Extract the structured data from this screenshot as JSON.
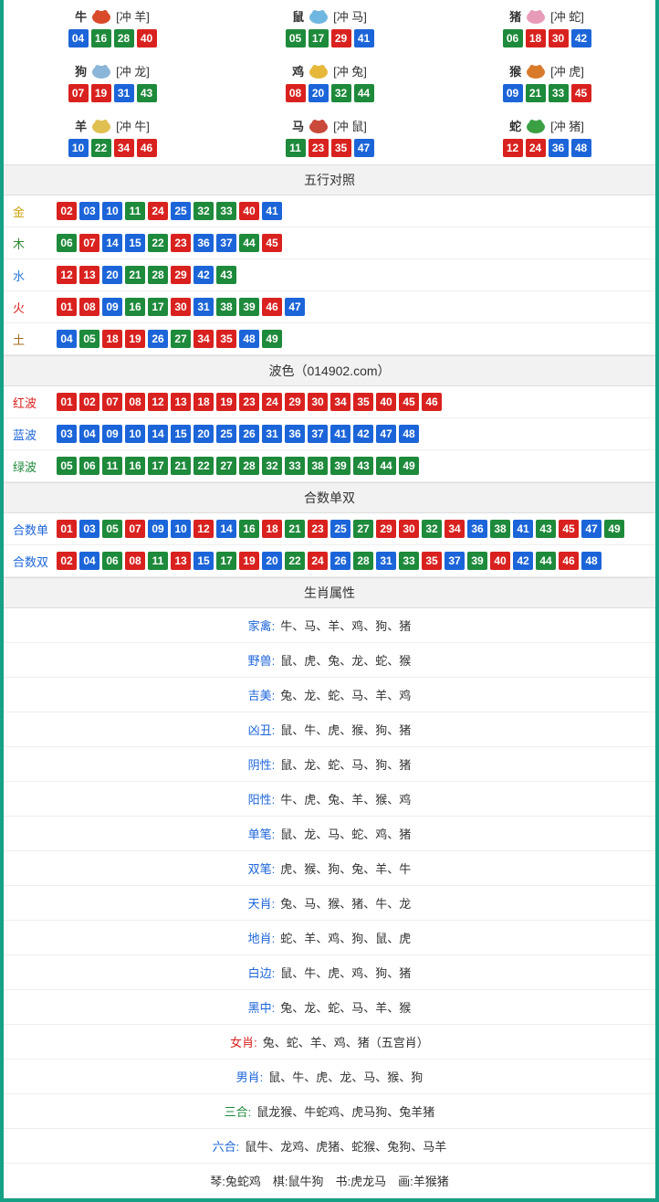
{
  "colors": {
    "border": "#16a085",
    "red": "#d9221f",
    "blue": "#1c65d9",
    "green": "#1e8a3b",
    "header_bg": "#f2f2f2",
    "row_border": "#eeeeee"
  },
  "ball_style": {
    "width": 22,
    "height": 20,
    "font_size": 12,
    "border_radius": 2
  },
  "zodiac": [
    {
      "name": "牛",
      "clash": "[冲 羊]",
      "icon_color": "#d94a2a",
      "balls": [
        {
          "n": "04",
          "c": "b"
        },
        {
          "n": "16",
          "c": "g"
        },
        {
          "n": "28",
          "c": "g"
        },
        {
          "n": "40",
          "c": "r"
        }
      ]
    },
    {
      "name": "鼠",
      "clash": "[冲 马]",
      "icon_color": "#6fb7e0",
      "balls": [
        {
          "n": "05",
          "c": "g"
        },
        {
          "n": "17",
          "c": "g"
        },
        {
          "n": "29",
          "c": "r"
        },
        {
          "n": "41",
          "c": "b"
        }
      ]
    },
    {
      "name": "猪",
      "clash": "[冲 蛇]",
      "icon_color": "#e89bb8",
      "balls": [
        {
          "n": "06",
          "c": "g"
        },
        {
          "n": "18",
          "c": "r"
        },
        {
          "n": "30",
          "c": "r"
        },
        {
          "n": "42",
          "c": "b"
        }
      ]
    },
    {
      "name": "狗",
      "clash": "[冲 龙]",
      "icon_color": "#8cb6d9",
      "balls": [
        {
          "n": "07",
          "c": "r"
        },
        {
          "n": "19",
          "c": "r"
        },
        {
          "n": "31",
          "c": "b"
        },
        {
          "n": "43",
          "c": "g"
        }
      ]
    },
    {
      "name": "鸡",
      "clash": "[冲 兔]",
      "icon_color": "#e6b83a",
      "balls": [
        {
          "n": "08",
          "c": "r"
        },
        {
          "n": "20",
          "c": "b"
        },
        {
          "n": "32",
          "c": "g"
        },
        {
          "n": "44",
          "c": "g"
        }
      ]
    },
    {
      "name": "猴",
      "clash": "[冲 虎]",
      "icon_color": "#d97a2a",
      "balls": [
        {
          "n": "09",
          "c": "b"
        },
        {
          "n": "21",
          "c": "g"
        },
        {
          "n": "33",
          "c": "g"
        },
        {
          "n": "45",
          "c": "r"
        }
      ]
    },
    {
      "name": "羊",
      "clash": "[冲 牛]",
      "icon_color": "#e0c050",
      "balls": [
        {
          "n": "10",
          "c": "b"
        },
        {
          "n": "22",
          "c": "g"
        },
        {
          "n": "34",
          "c": "r"
        },
        {
          "n": "46",
          "c": "r"
        }
      ]
    },
    {
      "name": "马",
      "clash": "[冲 鼠]",
      "icon_color": "#c94a3a",
      "balls": [
        {
          "n": "11",
          "c": "g"
        },
        {
          "n": "23",
          "c": "r"
        },
        {
          "n": "35",
          "c": "r"
        },
        {
          "n": "47",
          "c": "b"
        }
      ]
    },
    {
      "name": "蛇",
      "clash": "[冲 猪]",
      "icon_color": "#3aa043",
      "balls": [
        {
          "n": "12",
          "c": "r"
        },
        {
          "n": "24",
          "c": "r"
        },
        {
          "n": "36",
          "c": "b"
        },
        {
          "n": "48",
          "c": "b"
        }
      ]
    }
  ],
  "sections": {
    "wuxing_title": "五行对照",
    "wuxing": [
      {
        "label": "金",
        "label_class": "lbl-gold",
        "balls": [
          {
            "n": "02",
            "c": "r"
          },
          {
            "n": "03",
            "c": "b"
          },
          {
            "n": "10",
            "c": "b"
          },
          {
            "n": "11",
            "c": "g"
          },
          {
            "n": "24",
            "c": "r"
          },
          {
            "n": "25",
            "c": "b"
          },
          {
            "n": "32",
            "c": "g"
          },
          {
            "n": "33",
            "c": "g"
          },
          {
            "n": "40",
            "c": "r"
          },
          {
            "n": "41",
            "c": "b"
          }
        ]
      },
      {
        "label": "木",
        "label_class": "lbl-wood",
        "balls": [
          {
            "n": "06",
            "c": "g"
          },
          {
            "n": "07",
            "c": "r"
          },
          {
            "n": "14",
            "c": "b"
          },
          {
            "n": "15",
            "c": "b"
          },
          {
            "n": "22",
            "c": "g"
          },
          {
            "n": "23",
            "c": "r"
          },
          {
            "n": "36",
            "c": "b"
          },
          {
            "n": "37",
            "c": "b"
          },
          {
            "n": "44",
            "c": "g"
          },
          {
            "n": "45",
            "c": "r"
          }
        ]
      },
      {
        "label": "水",
        "label_class": "lbl-water",
        "balls": [
          {
            "n": "12",
            "c": "r"
          },
          {
            "n": "13",
            "c": "r"
          },
          {
            "n": "20",
            "c": "b"
          },
          {
            "n": "21",
            "c": "g"
          },
          {
            "n": "28",
            "c": "g"
          },
          {
            "n": "29",
            "c": "r"
          },
          {
            "n": "42",
            "c": "b"
          },
          {
            "n": "43",
            "c": "g"
          }
        ]
      },
      {
        "label": "火",
        "label_class": "lbl-fire",
        "balls": [
          {
            "n": "01",
            "c": "r"
          },
          {
            "n": "08",
            "c": "r"
          },
          {
            "n": "09",
            "c": "b"
          },
          {
            "n": "16",
            "c": "g"
          },
          {
            "n": "17",
            "c": "g"
          },
          {
            "n": "30",
            "c": "r"
          },
          {
            "n": "31",
            "c": "b"
          },
          {
            "n": "38",
            "c": "g"
          },
          {
            "n": "39",
            "c": "g"
          },
          {
            "n": "46",
            "c": "r"
          },
          {
            "n": "47",
            "c": "b"
          }
        ]
      },
      {
        "label": "土",
        "label_class": "lbl-earth",
        "balls": [
          {
            "n": "04",
            "c": "b"
          },
          {
            "n": "05",
            "c": "g"
          },
          {
            "n": "18",
            "c": "r"
          },
          {
            "n": "19",
            "c": "r"
          },
          {
            "n": "26",
            "c": "b"
          },
          {
            "n": "27",
            "c": "g"
          },
          {
            "n": "34",
            "c": "r"
          },
          {
            "n": "35",
            "c": "r"
          },
          {
            "n": "48",
            "c": "b"
          },
          {
            "n": "49",
            "c": "g"
          }
        ]
      }
    ],
    "bose_title": "波色（014902.com）",
    "bose": [
      {
        "label": "红波",
        "label_class": "lbl-red",
        "balls": [
          {
            "n": "01",
            "c": "r"
          },
          {
            "n": "02",
            "c": "r"
          },
          {
            "n": "07",
            "c": "r"
          },
          {
            "n": "08",
            "c": "r"
          },
          {
            "n": "12",
            "c": "r"
          },
          {
            "n": "13",
            "c": "r"
          },
          {
            "n": "18",
            "c": "r"
          },
          {
            "n": "19",
            "c": "r"
          },
          {
            "n": "23",
            "c": "r"
          },
          {
            "n": "24",
            "c": "r"
          },
          {
            "n": "29",
            "c": "r"
          },
          {
            "n": "30",
            "c": "r"
          },
          {
            "n": "34",
            "c": "r"
          },
          {
            "n": "35",
            "c": "r"
          },
          {
            "n": "40",
            "c": "r"
          },
          {
            "n": "45",
            "c": "r"
          },
          {
            "n": "46",
            "c": "r"
          }
        ]
      },
      {
        "label": "蓝波",
        "label_class": "lbl-blue",
        "balls": [
          {
            "n": "03",
            "c": "b"
          },
          {
            "n": "04",
            "c": "b"
          },
          {
            "n": "09",
            "c": "b"
          },
          {
            "n": "10",
            "c": "b"
          },
          {
            "n": "14",
            "c": "b"
          },
          {
            "n": "15",
            "c": "b"
          },
          {
            "n": "20",
            "c": "b"
          },
          {
            "n": "25",
            "c": "b"
          },
          {
            "n": "26",
            "c": "b"
          },
          {
            "n": "31",
            "c": "b"
          },
          {
            "n": "36",
            "c": "b"
          },
          {
            "n": "37",
            "c": "b"
          },
          {
            "n": "41",
            "c": "b"
          },
          {
            "n": "42",
            "c": "b"
          },
          {
            "n": "47",
            "c": "b"
          },
          {
            "n": "48",
            "c": "b"
          }
        ]
      },
      {
        "label": "绿波",
        "label_class": "lbl-green",
        "balls": [
          {
            "n": "05",
            "c": "g"
          },
          {
            "n": "06",
            "c": "g"
          },
          {
            "n": "11",
            "c": "g"
          },
          {
            "n": "16",
            "c": "g"
          },
          {
            "n": "17",
            "c": "g"
          },
          {
            "n": "21",
            "c": "g"
          },
          {
            "n": "22",
            "c": "g"
          },
          {
            "n": "27",
            "c": "g"
          },
          {
            "n": "28",
            "c": "g"
          },
          {
            "n": "32",
            "c": "g"
          },
          {
            "n": "33",
            "c": "g"
          },
          {
            "n": "38",
            "c": "g"
          },
          {
            "n": "39",
            "c": "g"
          },
          {
            "n": "43",
            "c": "g"
          },
          {
            "n": "44",
            "c": "g"
          },
          {
            "n": "49",
            "c": "g"
          }
        ]
      }
    ],
    "heshu_title": "合数单双",
    "heshu": [
      {
        "label": "合数单",
        "label_class": "lbl-blue",
        "balls": [
          {
            "n": "01",
            "c": "r"
          },
          {
            "n": "03",
            "c": "b"
          },
          {
            "n": "05",
            "c": "g"
          },
          {
            "n": "07",
            "c": "r"
          },
          {
            "n": "09",
            "c": "b"
          },
          {
            "n": "10",
            "c": "b"
          },
          {
            "n": "12",
            "c": "r"
          },
          {
            "n": "14",
            "c": "b"
          },
          {
            "n": "16",
            "c": "g"
          },
          {
            "n": "18",
            "c": "r"
          },
          {
            "n": "21",
            "c": "g"
          },
          {
            "n": "23",
            "c": "r"
          },
          {
            "n": "25",
            "c": "b"
          },
          {
            "n": "27",
            "c": "g"
          },
          {
            "n": "29",
            "c": "r"
          },
          {
            "n": "30",
            "c": "r"
          },
          {
            "n": "32",
            "c": "g"
          },
          {
            "n": "34",
            "c": "r"
          },
          {
            "n": "36",
            "c": "b"
          },
          {
            "n": "38",
            "c": "g"
          },
          {
            "n": "41",
            "c": "b"
          },
          {
            "n": "43",
            "c": "g"
          },
          {
            "n": "45",
            "c": "r"
          },
          {
            "n": "47",
            "c": "b"
          },
          {
            "n": "49",
            "c": "g"
          }
        ]
      },
      {
        "label": "合数双",
        "label_class": "lbl-blue",
        "balls": [
          {
            "n": "02",
            "c": "r"
          },
          {
            "n": "04",
            "c": "b"
          },
          {
            "n": "06",
            "c": "g"
          },
          {
            "n": "08",
            "c": "r"
          },
          {
            "n": "11",
            "c": "g"
          },
          {
            "n": "13",
            "c": "r"
          },
          {
            "n": "15",
            "c": "b"
          },
          {
            "n": "17",
            "c": "g"
          },
          {
            "n": "19",
            "c": "r"
          },
          {
            "n": "20",
            "c": "b"
          },
          {
            "n": "22",
            "c": "g"
          },
          {
            "n": "24",
            "c": "r"
          },
          {
            "n": "26",
            "c": "b"
          },
          {
            "n": "28",
            "c": "g"
          },
          {
            "n": "31",
            "c": "b"
          },
          {
            "n": "33",
            "c": "g"
          },
          {
            "n": "35",
            "c": "r"
          },
          {
            "n": "37",
            "c": "b"
          },
          {
            "n": "39",
            "c": "g"
          },
          {
            "n": "40",
            "c": "r"
          },
          {
            "n": "42",
            "c": "b"
          },
          {
            "n": "44",
            "c": "g"
          },
          {
            "n": "46",
            "c": "r"
          },
          {
            "n": "48",
            "c": "b"
          }
        ]
      }
    ],
    "attr_title": "生肖属性",
    "attrs": [
      {
        "label": "家禽:",
        "label_class": "attr-label",
        "value": "牛、马、羊、鸡、狗、猪"
      },
      {
        "label": "野兽:",
        "label_class": "attr-label",
        "value": "鼠、虎、兔、龙、蛇、猴"
      },
      {
        "label": "吉美:",
        "label_class": "attr-label",
        "value": "兔、龙、蛇、马、羊、鸡"
      },
      {
        "label": "凶丑:",
        "label_class": "attr-label",
        "value": "鼠、牛、虎、猴、狗、猪"
      },
      {
        "label": "阴性:",
        "label_class": "attr-label",
        "value": "鼠、龙、蛇、马、狗、猪"
      },
      {
        "label": "阳性:",
        "label_class": "attr-label",
        "value": "牛、虎、兔、羊、猴、鸡"
      },
      {
        "label": "单笔:",
        "label_class": "attr-label",
        "value": "鼠、龙、马、蛇、鸡、猪"
      },
      {
        "label": "双笔:",
        "label_class": "attr-label",
        "value": "虎、猴、狗、兔、羊、牛"
      },
      {
        "label": "天肖:",
        "label_class": "attr-label",
        "value": "兔、马、猴、猪、牛、龙"
      },
      {
        "label": "地肖:",
        "label_class": "attr-label",
        "value": "蛇、羊、鸡、狗、鼠、虎"
      },
      {
        "label": "白边:",
        "label_class": "attr-label",
        "value": "鼠、牛、虎、鸡、狗、猪"
      },
      {
        "label": "黑中:",
        "label_class": "attr-label",
        "value": "兔、龙、蛇、马、羊、猴"
      },
      {
        "label": "女肖:",
        "label_class": "attr-label-r",
        "value": "兔、蛇、羊、鸡、猪（五宫肖）"
      },
      {
        "label": "男肖:",
        "label_class": "attr-label",
        "value": "鼠、牛、虎、龙、马、猴、狗"
      },
      {
        "label": "三合:",
        "label_class": "attr-label-g",
        "value": "鼠龙猴、牛蛇鸡、虎马狗、兔羊猪"
      },
      {
        "label": "六合:",
        "label_class": "attr-label",
        "value": "鼠牛、龙鸡、虎猪、蛇猴、兔狗、马羊"
      }
    ],
    "footer_line": "琴:兔蛇鸡　棋:鼠牛狗　书:虎龙马　画:羊猴猪"
  }
}
